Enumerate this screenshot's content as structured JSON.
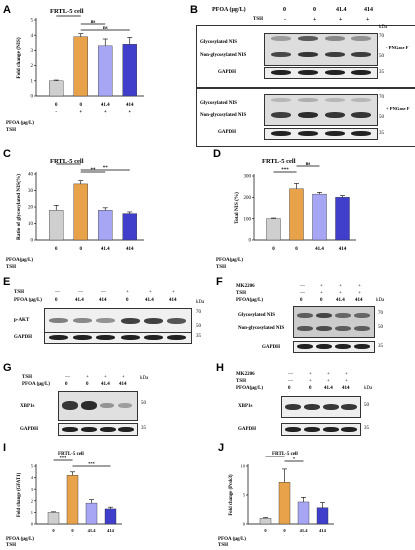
{
  "panels": {
    "A": {
      "letter": "A",
      "title": "FRTL-5 cell",
      "ylabel": "Fold change (NIS)",
      "row_labels": [
        "PFOA (μg/L)",
        "TSH"
      ],
      "pfoa": [
        "0",
        "0",
        "41.4",
        "414"
      ],
      "tsh": [
        "-",
        "+",
        "+",
        "+"
      ],
      "sig": [
        "****",
        "ns",
        "ns"
      ],
      "chart_data": {
        "type": "bar",
        "categories": [
          "0/-",
          "0/+",
          "41.4/+",
          "414/+"
        ],
        "values": [
          1.0,
          3.9,
          3.3,
          3.4
        ],
        "errors": [
          0.05,
          0.2,
          0.45,
          0.45
        ],
        "ylim": [
          0,
          5
        ],
        "yticks": [
          "0",
          "1",
          "2",
          "3",
          "4",
          "5"
        ],
        "colors": [
          "#cfcfcf",
          "#e8a24a",
          "#a6a6f5",
          "#3f3fcc"
        ]
      }
    },
    "B": {
      "letter": "B",
      "pfoa_label": "PFOA (μg/L)",
      "tsh_label": "TSH",
      "pfoa": [
        "0",
        "0",
        "41.4",
        "414"
      ],
      "tsh": [
        "-",
        "+",
        "+",
        "+"
      ],
      "top_labels": [
        "Glycosylated NIS",
        "Non-glycosylated NIS",
        "GAPDH"
      ],
      "bottom_labels": [
        "Glycosylated NIS",
        "Non-glycosylated NIS",
        "GAPDH"
      ],
      "kda": "kDa",
      "mw_top": [
        "70",
        "50",
        "35"
      ],
      "mw_bottom": [
        "70",
        "50",
        "35"
      ],
      "treat_top": "- PNGase F",
      "treat_bottom": "+ PNGase F"
    },
    "C": {
      "letter": "C",
      "title": "FRTL-5 cell",
      "ylabel": "Ratio of glycosylated NIS(%)",
      "row_labels": [
        "PFOA(μg/L)",
        "TSH"
      ],
      "pfoa": [
        "0",
        "0",
        "41.4",
        "414"
      ],
      "tsh": [
        "-",
        "+",
        "+",
        "+"
      ],
      "sig": [
        "**",
        "**",
        "**"
      ],
      "chart_data": {
        "type": "bar",
        "categories": [
          "0/-",
          "0/+",
          "41.4/+",
          "414/+"
        ],
        "values": [
          18,
          34,
          18,
          16
        ],
        "errors": [
          3,
          2,
          1.5,
          1
        ],
        "ylim": [
          0,
          40
        ],
        "yticks": [
          "0",
          "10",
          "20",
          "30",
          "40"
        ],
        "colors": [
          "#cfcfcf",
          "#e8a24a",
          "#a6a6f5",
          "#3f3fcc"
        ]
      }
    },
    "D": {
      "letter": "D",
      "title": "FRTL-5 cell",
      "ylabel": "Total NIS (%)",
      "row_labels": [
        "PFOA(μg/L)",
        "TSH"
      ],
      "pfoa": [
        "0",
        "0",
        "41.4",
        "414"
      ],
      "tsh": [
        "-",
        "+",
        "+",
        "+"
      ],
      "sig": [
        "***",
        "ns",
        "ns"
      ],
      "chart_data": {
        "type": "bar",
        "categories": [
          "0/-",
          "0/+",
          "41.4/+",
          "414/+"
        ],
        "values": [
          100,
          240,
          215,
          200
        ],
        "errors": [
          3,
          25,
          8,
          8
        ],
        "ylim": [
          0,
          300
        ],
        "yticks": [
          "0",
          "100",
          "200",
          "300"
        ],
        "colors": [
          "#cfcfcf",
          "#e8a24a",
          "#a6a6f5",
          "#3f3fcc"
        ]
      }
    },
    "E": {
      "letter": "E",
      "tsh_label": "TSH",
      "pfoa_label": "PFOA (μg/L)",
      "tsh": [
        "—",
        "—",
        "—",
        "+",
        "+",
        "+"
      ],
      "pfoa": [
        "0",
        "41.4",
        "414",
        "0",
        "41.4",
        "414"
      ],
      "labels": [
        "p-AKT",
        "GAPDH"
      ],
      "kda": "kDa",
      "mw": [
        "70",
        "50",
        "35"
      ]
    },
    "F": {
      "letter": "F",
      "row_names": [
        "MK2206",
        "TSH",
        "PFOA(μg/L)"
      ],
      "mk": [
        "—",
        "+",
        "+",
        "+"
      ],
      "tsh": [
        "—",
        "+",
        "+",
        "+"
      ],
      "pfoa": [
        "0",
        "0",
        "41.4",
        "414"
      ],
      "labels": [
        "Glycosylated NIS",
        "Non-glycosylated NIS",
        "GAPDH"
      ],
      "kda": "kDa",
      "mw": [
        "70",
        "50",
        "35"
      ]
    },
    "G": {
      "letter": "G",
      "tsh_label": "TSH",
      "pfoa_label": "PFOA (μg/L)",
      "tsh": [
        "—",
        "+",
        "+",
        "+"
      ],
      "pfoa": [
        "0",
        "0",
        "41.4",
        "414"
      ],
      "labels": [
        "XBP1s",
        "GAPDH"
      ],
      "kda": "kDa",
      "mw": [
        "50",
        "35"
      ]
    },
    "H": {
      "letter": "H",
      "row_names": [
        "MK2206",
        "TSH",
        "PFOA(μg/L)"
      ],
      "mk": [
        "—",
        "+",
        "+",
        "+"
      ],
      "tsh": [
        "—",
        "+",
        "+",
        "+"
      ],
      "pfoa": [
        "0",
        "0",
        "41.4",
        "414"
      ],
      "labels": [
        "XBP1s",
        "GAPDH"
      ],
      "kda": "kDa",
      "mw": [
        "50",
        "35"
      ]
    },
    "I": {
      "letter": "I",
      "title": "FRTL-5 cell",
      "ylabel": "Fold change (GFAT1)",
      "row_labels": [
        "PFOA (μg/L)",
        "TSH"
      ],
      "pfoa": [
        "0",
        "0",
        "41.4",
        "414"
      ],
      "tsh": [
        "-",
        "+",
        "+",
        "+"
      ],
      "sig": [
        "***",
        "**",
        "***"
      ],
      "chart_data": {
        "type": "bar",
        "categories": [
          "0/-",
          "0/+",
          "41.4/+",
          "414/+"
        ],
        "values": [
          1.0,
          4.2,
          1.8,
          1.3
        ],
        "errors": [
          0.05,
          0.3,
          0.3,
          0.15
        ],
        "ylim": [
          0,
          5
        ],
        "yticks": [
          "0",
          "1",
          "2",
          "3",
          "4",
          "5"
        ],
        "colors": [
          "#cfcfcf",
          "#e8a24a",
          "#a6a6f5",
          "#3f3fcc"
        ]
      }
    },
    "J": {
      "letter": "J",
      "title": "FRTL-5 cell",
      "ylabel": "Fold change (Pcsk3)",
      "row_labels": [
        "PFOA (μg/L)",
        "TSH"
      ],
      "pfoa": [
        "0",
        "0",
        "41.4",
        "414"
      ],
      "tsh": [
        "-",
        "+",
        "+",
        "+"
      ],
      "sig": [
        "**",
        "*"
      ],
      "chart_data": {
        "type": "bar",
        "categories": [
          "0/-",
          "0/+",
          "41.4/+",
          "414/+"
        ],
        "values": [
          1.0,
          7.2,
          3.8,
          2.8
        ],
        "errors": [
          0.1,
          2.3,
          0.8,
          0.9
        ],
        "ylim": [
          0,
          10
        ],
        "yticks": [
          "0",
          "5",
          "10"
        ],
        "colors": [
          "#cfcfcf",
          "#e8a24a",
          "#a6a6f5",
          "#3f3fcc"
        ]
      }
    }
  }
}
